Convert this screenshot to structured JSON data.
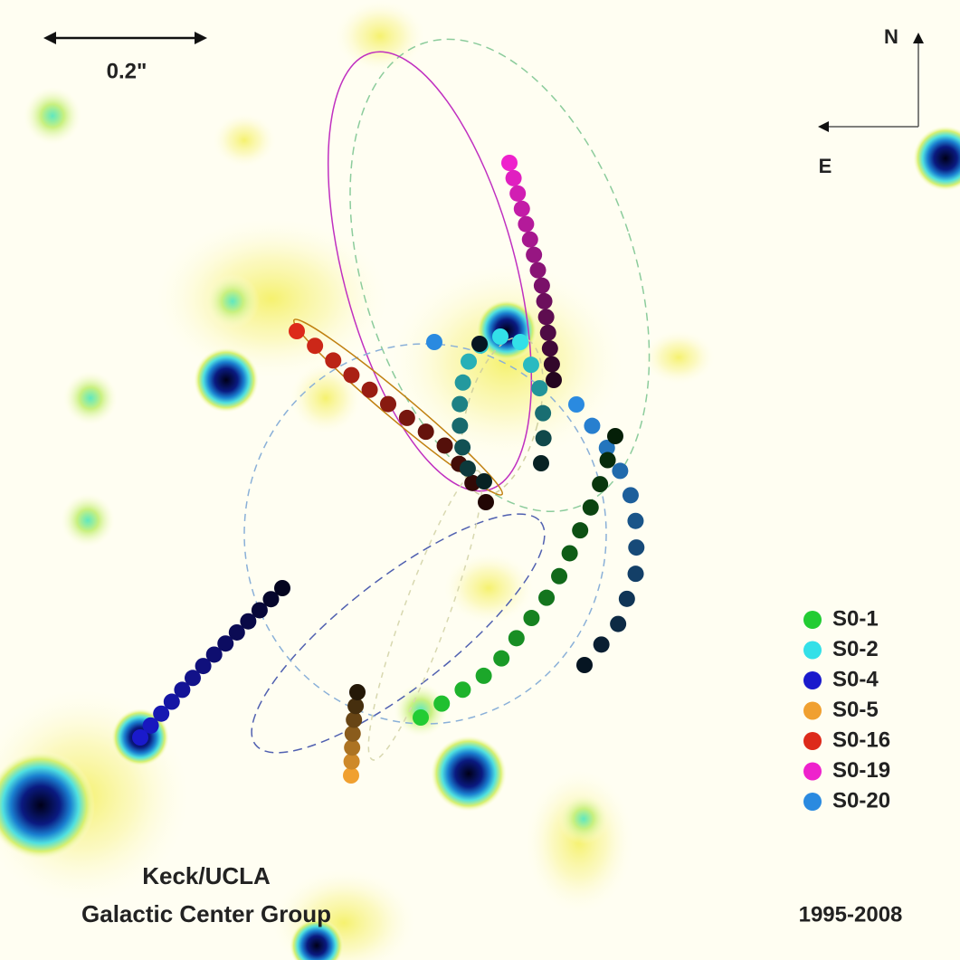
{
  "scale_bar": {
    "label": "0.2\""
  },
  "compass": {
    "north": "N",
    "east": "E"
  },
  "legend": [
    {
      "name": "S0-1",
      "color": "#22cc33"
    },
    {
      "name": "S0-2",
      "color": "#33e0e8"
    },
    {
      "name": "S0-4",
      "color": "#1a1acc"
    },
    {
      "name": "S0-5",
      "color": "#f0a030"
    },
    {
      "name": "S0-16",
      "color": "#dd2a1a"
    },
    {
      "name": "S0-19",
      "color": "#ee22cc"
    },
    {
      "name": "S0-20",
      "color": "#2a8ae0"
    }
  ],
  "credit": {
    "line1": "Keck/UCLA",
    "line2": "Galactic Center Group"
  },
  "date_range": "1995-2008"
}
